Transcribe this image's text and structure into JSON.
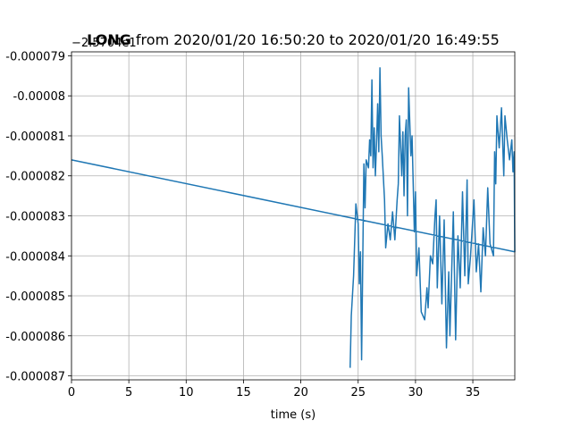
{
  "chart_data": {
    "type": "line",
    "title_prefix": "LONG",
    "title": "from 2020/01/20 16:50:20 to 2020/01/20 16:49:55",
    "offset_label": "−2.5704e1",
    "xlabel": "time (s)",
    "xlim": [
      0,
      38.66
    ],
    "xticks": [
      0,
      5,
      10,
      15,
      20,
      25,
      30,
      35
    ],
    "ylim": [
      -8.71e-05,
      -7.89e-05
    ],
    "yticks": [
      -7.9e-05,
      -8e-05,
      -8.1e-05,
      -8.2e-05,
      -8.3e-05,
      -8.4e-05,
      -8.5e-05,
      -8.6e-05,
      -8.7e-05
    ],
    "grid": true,
    "series": [
      {
        "color": "#1f77b4",
        "x": [
          24.3,
          24.4,
          24.6,
          24.8,
          25.0,
          25.1,
          25.2,
          25.3,
          25.5,
          25.6,
          25.7,
          25.9,
          26.0,
          26.1,
          26.2,
          26.3,
          26.4,
          26.5,
          26.6,
          26.7,
          26.8,
          26.9,
          27.0,
          27.1,
          27.3,
          27.4,
          27.6,
          27.8,
          28.0,
          28.2,
          28.4,
          28.5,
          28.6,
          28.8,
          28.9,
          29.0,
          29.1,
          29.2,
          29.3,
          29.4,
          29.6,
          29.7,
          29.9,
          30.0,
          30.1,
          30.3,
          30.5,
          30.8,
          31.0,
          31.1,
          31.3,
          31.5,
          31.7,
          31.8,
          31.9,
          32.1,
          32.3,
          32.5,
          32.7,
          32.9,
          33.0,
          33.3,
          33.5,
          33.7,
          33.9,
          34.1,
          34.3,
          34.5,
          34.6,
          34.8,
          35.1,
          35.3,
          35.5,
          35.7,
          35.9,
          36.1,
          36.3,
          36.5,
          36.8,
          36.9,
          37.0,
          37.1,
          37.3,
          37.5,
          37.7,
          37.8,
          38.0,
          38.2,
          38.4,
          38.5,
          38.6,
          38.66,
          0
        ],
        "values": [
          -8.68e-05,
          -8.55e-05,
          -8.45e-05,
          -8.27e-05,
          -8.32e-05,
          -8.47e-05,
          -8.39e-05,
          -8.66e-05,
          -8.17e-05,
          -8.28e-05,
          -8.16e-05,
          -8.18e-05,
          -8.11e-05,
          -8.15e-05,
          -7.96e-05,
          -8.18e-05,
          -8.08e-05,
          -8.2e-05,
          -8.12e-05,
          -8.02e-05,
          -8.14e-05,
          -7.93e-05,
          -8.1e-05,
          -8.15e-05,
          -8.26e-05,
          -8.38e-05,
          -8.32e-05,
          -8.36e-05,
          -8.29e-05,
          -8.36e-05,
          -8.26e-05,
          -8.22e-05,
          -8.05e-05,
          -8.2e-05,
          -8.09e-05,
          -8.25e-05,
          -8.1e-05,
          -8.06e-05,
          -8.3e-05,
          -7.98e-05,
          -8.15e-05,
          -8.1e-05,
          -8.34e-05,
          -8.24e-05,
          -8.45e-05,
          -8.38e-05,
          -8.54e-05,
          -8.56e-05,
          -8.48e-05,
          -8.53e-05,
          -8.4e-05,
          -8.42e-05,
          -8.3e-05,
          -8.26e-05,
          -8.48e-05,
          -8.3e-05,
          -8.52e-05,
          -8.31e-05,
          -8.63e-05,
          -8.44e-05,
          -8.6e-05,
          -8.29e-05,
          -8.61e-05,
          -8.35e-05,
          -8.48e-05,
          -8.24e-05,
          -8.45e-05,
          -8.21e-05,
          -8.47e-05,
          -8.4e-05,
          -8.26e-05,
          -8.44e-05,
          -8.37e-05,
          -8.49e-05,
          -8.33e-05,
          -8.4e-05,
          -8.23e-05,
          -8.37e-05,
          -8.4e-05,
          -8.14e-05,
          -8.22e-05,
          -8.05e-05,
          -8.13e-05,
          -8.03e-05,
          -8.2e-05,
          -8.05e-05,
          -8.11e-05,
          -8.16e-05,
          -8.11e-05,
          -8.19e-05,
          -8.14e-05,
          -8.39e-05,
          -8.16e-05
        ]
      }
    ]
  }
}
